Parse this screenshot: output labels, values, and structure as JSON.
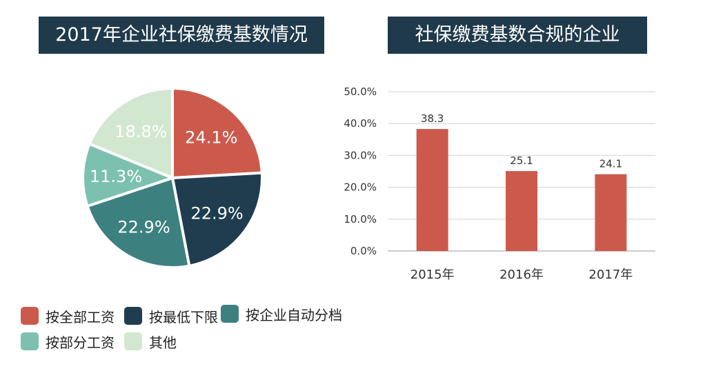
{
  "pie_title": "2017年企业社保缴费基数情况",
  "bar_title": "社保缴费基数合规的企业",
  "colors": {
    "banner": "#1f3a4b",
    "bar": "#cc5a4c",
    "grid": "#d0d0d0"
  },
  "chart_data": [
    {
      "type": "pie",
      "title": "2017年企业社保缴费基数情况",
      "slices": [
        {
          "name": "按全部工资",
          "value": 24.1,
          "label": "24.1%",
          "color": "#cc5a4c"
        },
        {
          "name": "按最低下限",
          "value": 22.9,
          "label": "22.9%",
          "color": "#1f3d4f"
        },
        {
          "name": "按企业自动分档",
          "value": 22.9,
          "label": "22.9%",
          "color": "#3d8080"
        },
        {
          "name": "按部分工资",
          "value": 11.3,
          "label": "11.3%",
          "color": "#7cc1b0"
        },
        {
          "name": "其他",
          "value": 18.8,
          "label": "18.8%",
          "color": "#d2e7cf"
        }
      ],
      "start_angle_deg": 0,
      "direction": "clockwise",
      "legend_position": "bottom"
    },
    {
      "type": "bar",
      "title": "社保缴费基数合规的企业",
      "categories": [
        "2015年",
        "2016年",
        "2017年"
      ],
      "values": [
        38.3,
        25.1,
        24.1
      ],
      "value_labels": [
        "38.3",
        "25.1",
        "24.1"
      ],
      "ylim": [
        0,
        50
      ],
      "yticks": [
        0,
        10,
        20,
        30,
        40,
        50
      ],
      "ytick_labels": [
        "0.0%",
        "10.0%",
        "20.0%",
        "30.0%",
        "40.0%",
        "50.0%"
      ],
      "grid": true,
      "xlabel": "",
      "ylabel": ""
    }
  ]
}
